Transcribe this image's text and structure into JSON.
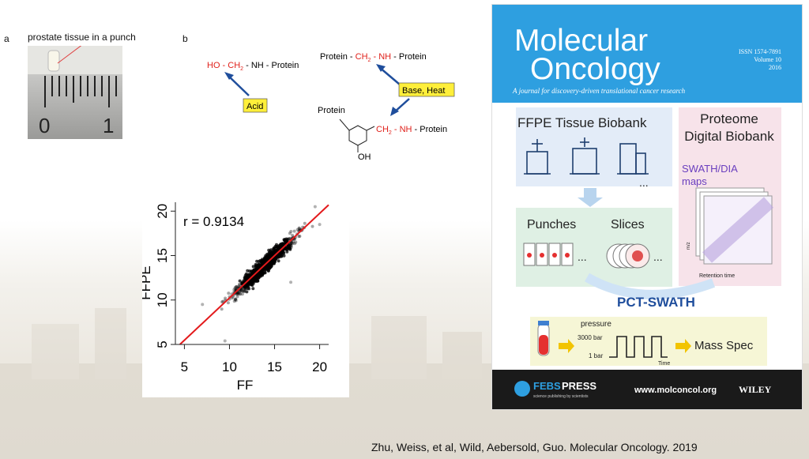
{
  "panel_a": {
    "label": "a",
    "caption": "prostate tissue in a punch",
    "ruler_labels": [
      "0",
      "1"
    ]
  },
  "panel_b": {
    "label": "b",
    "reaction1": {
      "text1": "HO - ",
      "text2": "CH",
      "sub": "2",
      "text3": " - NH - Protein"
    },
    "reaction2": {
      "text1": "Protein - ",
      "text2": "CH",
      "sub": "2",
      "text3": " - NH",
      "text4": " - Protein"
    },
    "reaction3": {
      "protein": "Protein",
      "oh": "OH",
      "text2": "CH",
      "sub": "2",
      "text3": " - NH",
      "text4": " - Protein"
    },
    "acid_label": "Acid",
    "base_label": "Base, Heat",
    "colors": {
      "red": "#e0211b",
      "arrow": "#1f4e9c",
      "box": "#ffef3a"
    }
  },
  "chart_data": {
    "type": "scatter",
    "annotation": "r = 0.9134",
    "xlabel": "FF",
    "ylabel": "FFPE",
    "xlim": [
      4,
      21
    ],
    "ylim": [
      5,
      21
    ],
    "x_ticks": [
      5,
      10,
      15,
      20
    ],
    "y_ticks": [
      5,
      10,
      15,
      20
    ],
    "fit_line": {
      "x": [
        4.5,
        21
      ],
      "y": [
        5.0,
        20.7
      ],
      "color": "#e31a1c"
    },
    "point_color": "#000000",
    "cloud_center": [
      14,
      14
    ],
    "outliers": [
      {
        "x": 9.5,
        "y": 5.4
      },
      {
        "x": 7,
        "y": 9.5
      },
      {
        "x": 20,
        "y": 18.5
      },
      {
        "x": 11,
        "y": 11.2
      },
      {
        "x": 19.5,
        "y": 20.5
      },
      {
        "x": 16.8,
        "y": 12.0
      }
    ]
  },
  "cover": {
    "title_line1": "Molecular",
    "title_line2": "Oncology",
    "issn": "ISSN 1574-7891",
    "volume": "Volume 10",
    "year": "2016",
    "tagline": "A journal for discovery-driven translational cancer research",
    "biobank_title": "FFPE Tissue Biobank",
    "proteome_line1": "Proteome",
    "proteome_line2": "Digital Biobank",
    "swath_line1": "SWATH/DIA",
    "swath_line2": "maps",
    "mz_label": "m/z",
    "rt_label": "Retention time",
    "punches": "Punches",
    "slices": "Slices",
    "ellipsis": "...",
    "ellipsis2": "...",
    "ellipsis3": "...",
    "pct_swath": "PCT-SWATH",
    "pressure": "pressure",
    "p_high": "3000 bar",
    "p_low": "1 bar",
    "time": "Time",
    "mass_spec": "Mass Spec",
    "febs": "FEBS",
    "press": "PRESS",
    "febs_sub": "science publishing by scientists",
    "url": "www.molconcol.org",
    "publisher": "WILEY",
    "colors": {
      "header": "#2e9fe0",
      "pct": "#1f4e9c",
      "swath": "#6a3fbf",
      "arrow": "#f2c400",
      "tube": "#e53030"
    }
  },
  "citation": "Zhu, Weiss, et al, Wild, Aebersold, Guo. Molecular Oncology. 2019"
}
